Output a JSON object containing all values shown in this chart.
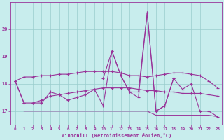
{
  "x": [
    0,
    1,
    2,
    3,
    4,
    5,
    6,
    7,
    8,
    9,
    10,
    11,
    12,
    13,
    14,
    15,
    16,
    17,
    18,
    19,
    20,
    21,
    22,
    23
  ],
  "line_spiky1": [
    18.1,
    null,
    17.3,
    17.3,
    17.7,
    17.6,
    17.4,
    17.5,
    17.6,
    17.8,
    17.2,
    19.2,
    18.3,
    17.7,
    17.7,
    20.6,
    17.0,
    17.2,
    18.2,
    17.8,
    18.0,
    17.0,
    17.0,
    16.8
  ],
  "line_spiky2": [
    18.1,
    17.3,
    null,
    null,
    null,
    null,
    null,
    null,
    null,
    null,
    18.2,
    19.2,
    18.3,
    17.7,
    17.5,
    20.6,
    17.0,
    17.2,
    18.2,
    null,
    null,
    null,
    null,
    null
  ],
  "line_smooth_upper": [
    18.1,
    18.25,
    18.25,
    18.3,
    18.3,
    18.35,
    18.35,
    18.4,
    18.45,
    18.45,
    18.45,
    18.45,
    18.4,
    18.3,
    18.3,
    18.25,
    18.3,
    18.35,
    18.4,
    18.4,
    18.35,
    18.3,
    18.1,
    17.85
  ],
  "line_smooth_lower": [
    18.1,
    17.3,
    17.3,
    17.4,
    17.55,
    17.6,
    17.65,
    17.7,
    17.75,
    17.8,
    17.85,
    17.85,
    17.85,
    17.85,
    17.8,
    17.75,
    17.75,
    17.7,
    17.7,
    17.65,
    17.65,
    17.65,
    17.6,
    17.55
  ],
  "line_flat": [
    null,
    17.0,
    17.0,
    17.0,
    17.0,
    17.0,
    17.0,
    17.0,
    17.0,
    17.0,
    17.0,
    17.0,
    17.0,
    17.0,
    17.0,
    17.0,
    16.85,
    16.85,
    16.85,
    16.85,
    16.85,
    16.85,
    16.85,
    16.8
  ],
  "bg_color": "#c8eded",
  "line_color": "#993399",
  "grid_color": "#99cccc",
  "xlabel": "Windchill (Refroidissement éolien,°C)",
  "ylim": [
    16.5,
    21.0
  ],
  "xlim": [
    -0.5,
    23.5
  ],
  "yticks": [
    17,
    18,
    19,
    20
  ],
  "xticks": [
    0,
    1,
    2,
    3,
    4,
    5,
    6,
    7,
    8,
    9,
    10,
    11,
    12,
    13,
    14,
    15,
    16,
    17,
    18,
    19,
    20,
    21,
    22,
    23
  ]
}
